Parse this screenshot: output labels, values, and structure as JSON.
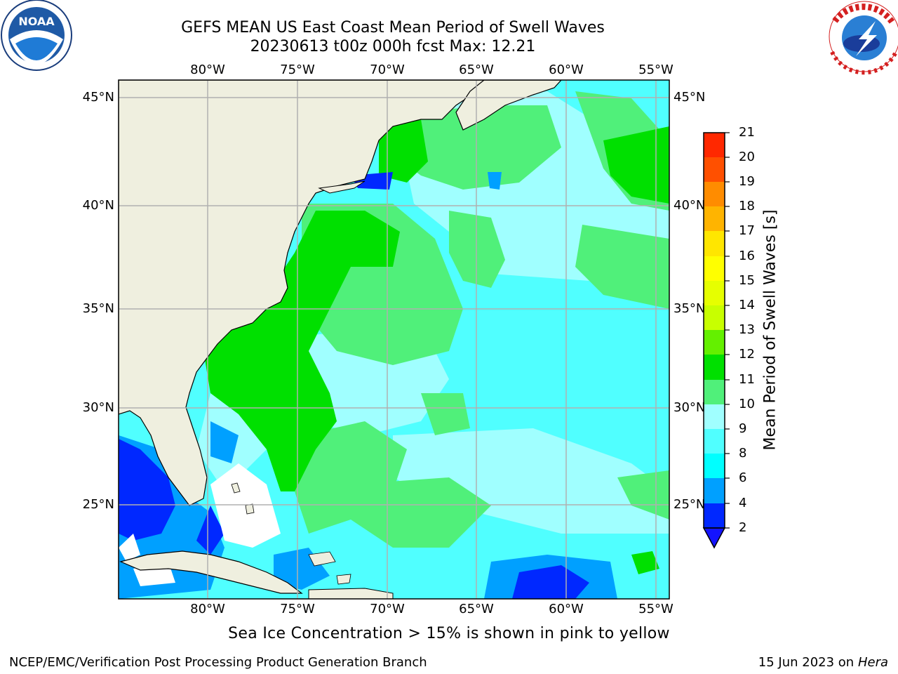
{
  "header": {
    "title": "GEFS MEAN US East Coast Mean Period of Swell Waves",
    "subtitle": "20230613 t00z 000h fcst   Max: 12.21"
  },
  "logos": {
    "left": {
      "name": "noaa-logo",
      "text": "NOAA",
      "ring_text": "NATIONAL OCEANIC AND ATMOSPHERIC ADMINISTRATION · U.S. DEPARTMENT OF COMMERCE"
    },
    "right": {
      "name": "nws-logo",
      "ring_text": "NATIONAL WEATHER SERVICE"
    }
  },
  "map": {
    "lon_labels": [
      "80°W",
      "75°W",
      "70°W",
      "65°W",
      "60°W",
      "55°W"
    ],
    "lat_labels": [
      "45°N",
      "40°N",
      "35°N",
      "30°N",
      "25°N"
    ],
    "colors": {
      "land": "#efefdf",
      "no_data": "#ffffff",
      "gridline": "#b0b0b0"
    }
  },
  "colorbar": {
    "label": "Mean Period of Swell Waves [s]",
    "ticks": [
      "2",
      "4",
      "6",
      "8",
      "9",
      "10",
      "11",
      "12",
      "13",
      "14",
      "15",
      "16",
      "17",
      "18",
      "19",
      "20",
      "21"
    ],
    "colors": [
      "#0028ff",
      "#00a0ff",
      "#00ffff",
      "#50ffff",
      "#a0ffff",
      "#50f07a",
      "#00e000",
      "#64f000",
      "#c8ff00",
      "#e6ff00",
      "#ffff00",
      "#ffe600",
      "#ffb400",
      "#ff8c00",
      "#ff5000",
      "#ff2800"
    ],
    "under_color": "#1414ff"
  },
  "footer": {
    "note": "Sea Ice Concentration > 15% is shown in pink to yellow",
    "credit": "NCEP/EMC/Verification Post Processing Product Generation Branch",
    "date": "15 Jun 2023 on",
    "machine": "Hera"
  }
}
